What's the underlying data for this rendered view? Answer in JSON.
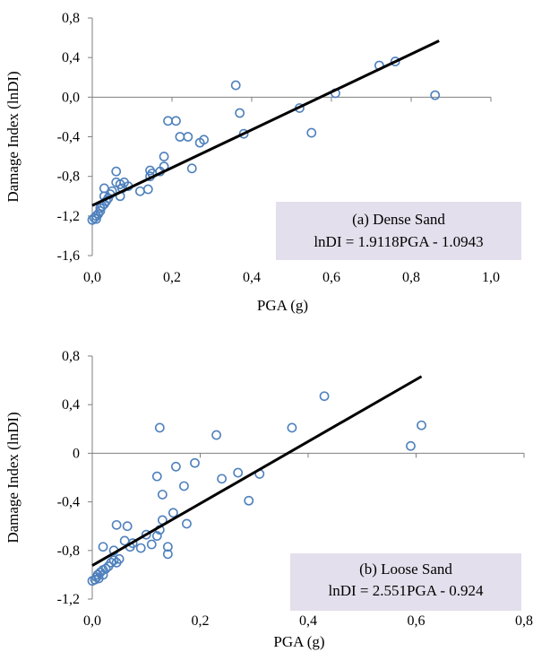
{
  "colors": {
    "marker": "#4f81bd",
    "fit_line": "#000000",
    "axis": "#7f7f7f",
    "equation_box": "#e4dfec"
  },
  "chart_data": [
    {
      "type": "scatter",
      "xlabel": "PGA (g)",
      "ylabel": "Damage Index (lnDI)",
      "xlim": [
        0,
        1.0
      ],
      "ylim": [
        -1.6,
        0.8
      ],
      "xticks": [
        "0,0",
        "0,2",
        "0,4",
        "0,6",
        "0,8",
        "1,0"
      ],
      "xtick_values": [
        0,
        0.2,
        0.4,
        0.6,
        0.8,
        1.0
      ],
      "yticks": [
        "-1,6",
        "-1,2",
        "-0,8",
        "-0,4",
        "0,0",
        "0,4",
        "0,8"
      ],
      "ytick_values": [
        -1.6,
        -1.2,
        -0.8,
        -0.4,
        0.0,
        0.4,
        0.8
      ],
      "grid": false,
      "annotation": [
        "(a) Dense Sand",
        "lnDI = 1.9118PGA - 1.0943"
      ],
      "fit": {
        "slope": 1.9118,
        "intercept": -1.0943,
        "x_range": [
          0,
          0.87
        ]
      },
      "points": [
        [
          0.0,
          -1.24
        ],
        [
          0.005,
          -1.22
        ],
        [
          0.01,
          -1.2
        ],
        [
          0.01,
          -1.23
        ],
        [
          0.015,
          -1.18
        ],
        [
          0.02,
          -1.15
        ],
        [
          0.02,
          -1.12
        ],
        [
          0.025,
          -1.1
        ],
        [
          0.03,
          -1.08
        ],
        [
          0.035,
          -1.05
        ],
        [
          0.03,
          -1.0
        ],
        [
          0.04,
          -1.02
        ],
        [
          0.045,
          -0.98
        ],
        [
          0.03,
          -0.92
        ],
        [
          0.05,
          -0.95
        ],
        [
          0.06,
          -0.86
        ],
        [
          0.07,
          -0.88
        ],
        [
          0.08,
          -0.86
        ],
        [
          0.075,
          -0.92
        ],
        [
          0.06,
          -0.75
        ],
        [
          0.07,
          -1.0
        ],
        [
          0.09,
          -0.9
        ],
        [
          0.12,
          -0.95
        ],
        [
          0.14,
          -0.93
        ],
        [
          0.145,
          -0.74
        ],
        [
          0.145,
          -0.8
        ],
        [
          0.15,
          -0.77
        ],
        [
          0.17,
          -0.75
        ],
        [
          0.18,
          -0.7
        ],
        [
          0.18,
          -0.6
        ],
        [
          0.19,
          -0.24
        ],
        [
          0.21,
          -0.24
        ],
        [
          0.22,
          -0.4
        ],
        [
          0.24,
          -0.4
        ],
        [
          0.25,
          -0.72
        ],
        [
          0.27,
          -0.46
        ],
        [
          0.28,
          -0.43
        ],
        [
          0.36,
          0.12
        ],
        [
          0.37,
          -0.16
        ],
        [
          0.38,
          -0.37
        ],
        [
          0.52,
          -0.11
        ],
        [
          0.55,
          -0.36
        ],
        [
          0.61,
          0.04
        ],
        [
          0.72,
          0.32
        ],
        [
          0.76,
          0.36
        ],
        [
          0.86,
          0.02
        ]
      ]
    },
    {
      "type": "scatter",
      "xlabel": "PGA (g)",
      "ylabel": "Damage Index (lnDI)",
      "xlim": [
        0,
        0.8
      ],
      "ylim": [
        -1.2,
        0.8
      ],
      "xticks": [
        "0,0",
        "0,2",
        "0,4",
        "0,6",
        "0,8"
      ],
      "xtick_values": [
        0,
        0.2,
        0.4,
        0.6,
        0.8
      ],
      "yticks": [
        "-1,2",
        "-0,8",
        "-0,4",
        "0",
        "0,4",
        "0,8"
      ],
      "ytick_values": [
        -1.2,
        -0.8,
        -0.4,
        0.0,
        0.4,
        0.8
      ],
      "grid": false,
      "annotation": [
        "(b) Loose Sand",
        "lnDI = 2.551PGA - 0.924"
      ],
      "fit": {
        "slope": 2.551,
        "intercept": -0.924,
        "x_range": [
          0,
          0.61
        ]
      },
      "points": [
        [
          0.0,
          -1.05
        ],
        [
          0.005,
          -1.04
        ],
        [
          0.008,
          -1.02
        ],
        [
          0.01,
          -1.0
        ],
        [
          0.012,
          -1.03
        ],
        [
          0.015,
          -0.98
        ],
        [
          0.02,
          -1.0
        ],
        [
          0.02,
          -0.96
        ],
        [
          0.025,
          -0.95
        ],
        [
          0.03,
          -0.93
        ],
        [
          0.035,
          -0.9
        ],
        [
          0.04,
          -0.88
        ],
        [
          0.045,
          -0.9
        ],
        [
          0.05,
          -0.87
        ],
        [
          0.02,
          -0.77
        ],
        [
          0.04,
          -0.8
        ],
        [
          0.045,
          -0.59
        ],
        [
          0.065,
          -0.6
        ],
        [
          0.07,
          -0.77
        ],
        [
          0.075,
          -0.74
        ],
        [
          0.06,
          -0.72
        ],
        [
          0.09,
          -0.78
        ],
        [
          0.1,
          -0.67
        ],
        [
          0.11,
          -0.75
        ],
        [
          0.12,
          -0.68
        ],
        [
          0.125,
          -0.63
        ],
        [
          0.13,
          -0.55
        ],
        [
          0.14,
          -0.77
        ],
        [
          0.14,
          -0.83
        ],
        [
          0.12,
          -0.19
        ],
        [
          0.125,
          0.21
        ],
        [
          0.13,
          -0.34
        ],
        [
          0.15,
          -0.49
        ],
        [
          0.155,
          -0.11
        ],
        [
          0.17,
          -0.27
        ],
        [
          0.175,
          -0.58
        ],
        [
          0.19,
          -0.08
        ],
        [
          0.23,
          0.15
        ],
        [
          0.24,
          -0.21
        ],
        [
          0.27,
          -0.16
        ],
        [
          0.29,
          -0.39
        ],
        [
          0.31,
          -0.17
        ],
        [
          0.37,
          0.21
        ],
        [
          0.43,
          0.47
        ],
        [
          0.59,
          0.06
        ],
        [
          0.61,
          0.23
        ]
      ]
    }
  ]
}
